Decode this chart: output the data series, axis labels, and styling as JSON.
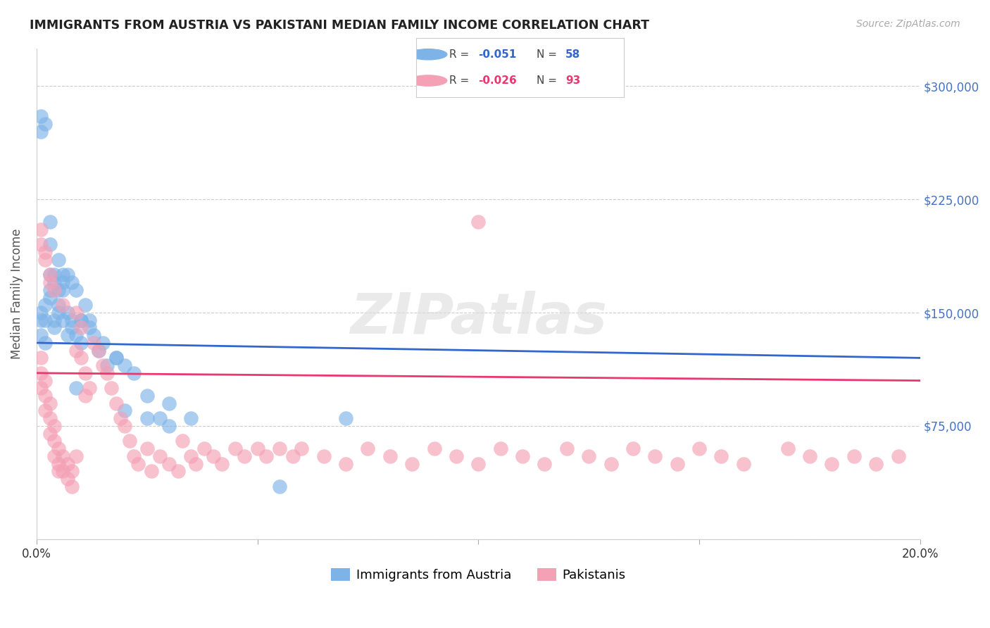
{
  "title": "IMMIGRANTS FROM AUSTRIA VS PAKISTANI MEDIAN FAMILY INCOME CORRELATION CHART",
  "source": "Source: ZipAtlas.com",
  "ylabel": "Median Family Income",
  "xlim": [
    0.0,
    0.2
  ],
  "ylim": [
    0,
    325000
  ],
  "yticks": [
    0,
    75000,
    150000,
    225000,
    300000
  ],
  "ytick_labels": [
    "",
    "$75,000",
    "$150,000",
    "$225,000",
    "$300,000"
  ],
  "xticks": [
    0.0,
    0.05,
    0.1,
    0.15,
    0.2
  ],
  "xtick_labels": [
    "0.0%",
    "",
    "",
    "",
    "20.0%"
  ],
  "austria_color": "#7EB3E8",
  "pakistan_color": "#F4A0B5",
  "trendline_austria_color": "#3366CC",
  "trendline_pakistan_color": "#E8386D",
  "austria_x": [
    0.001,
    0.001,
    0.001,
    0.002,
    0.002,
    0.002,
    0.003,
    0.003,
    0.003,
    0.004,
    0.004,
    0.004,
    0.005,
    0.005,
    0.005,
    0.006,
    0.006,
    0.006,
    0.007,
    0.007,
    0.008,
    0.008,
    0.009,
    0.009,
    0.01,
    0.01,
    0.011,
    0.012,
    0.013,
    0.014,
    0.016,
    0.018,
    0.02,
    0.022,
    0.025,
    0.028,
    0.03,
    0.035,
    0.001,
    0.001,
    0.002,
    0.003,
    0.003,
    0.004,
    0.005,
    0.006,
    0.007,
    0.008,
    0.009,
    0.01,
    0.012,
    0.015,
    0.018,
    0.02,
    0.025,
    0.03,
    0.055,
    0.07
  ],
  "austria_y": [
    135000,
    150000,
    145000,
    130000,
    145000,
    155000,
    175000,
    165000,
    160000,
    170000,
    145000,
    140000,
    150000,
    165000,
    155000,
    170000,
    165000,
    145000,
    150000,
    135000,
    140000,
    145000,
    135000,
    100000,
    145000,
    130000,
    155000,
    145000,
    135000,
    125000,
    115000,
    120000,
    115000,
    110000,
    95000,
    80000,
    90000,
    80000,
    280000,
    270000,
    275000,
    210000,
    195000,
    175000,
    185000,
    175000,
    175000,
    170000,
    165000,
    145000,
    140000,
    130000,
    120000,
    85000,
    80000,
    75000,
    35000,
    80000
  ],
  "pakistan_x": [
    0.001,
    0.001,
    0.001,
    0.002,
    0.002,
    0.002,
    0.003,
    0.003,
    0.003,
    0.004,
    0.004,
    0.004,
    0.005,
    0.005,
    0.005,
    0.006,
    0.006,
    0.007,
    0.007,
    0.008,
    0.008,
    0.009,
    0.009,
    0.01,
    0.01,
    0.011,
    0.011,
    0.012,
    0.013,
    0.014,
    0.015,
    0.016,
    0.017,
    0.018,
    0.019,
    0.02,
    0.021,
    0.022,
    0.023,
    0.025,
    0.026,
    0.028,
    0.03,
    0.032,
    0.033,
    0.035,
    0.036,
    0.038,
    0.04,
    0.042,
    0.045,
    0.047,
    0.05,
    0.052,
    0.055,
    0.058,
    0.06,
    0.065,
    0.07,
    0.075,
    0.08,
    0.085,
    0.09,
    0.095,
    0.1,
    0.105,
    0.11,
    0.115,
    0.12,
    0.125,
    0.13,
    0.135,
    0.14,
    0.145,
    0.15,
    0.155,
    0.16,
    0.17,
    0.175,
    0.18,
    0.185,
    0.19,
    0.195,
    0.001,
    0.001,
    0.002,
    0.002,
    0.003,
    0.003,
    0.004,
    0.006,
    0.009,
    0.1
  ],
  "pakistan_y": [
    120000,
    110000,
    100000,
    105000,
    95000,
    85000,
    90000,
    80000,
    70000,
    75000,
    65000,
    55000,
    60000,
    50000,
    45000,
    55000,
    45000,
    50000,
    40000,
    45000,
    35000,
    55000,
    125000,
    140000,
    120000,
    110000,
    95000,
    100000,
    130000,
    125000,
    115000,
    110000,
    100000,
    90000,
    80000,
    75000,
    65000,
    55000,
    50000,
    60000,
    45000,
    55000,
    50000,
    45000,
    65000,
    55000,
    50000,
    60000,
    55000,
    50000,
    60000,
    55000,
    60000,
    55000,
    60000,
    55000,
    60000,
    55000,
    50000,
    60000,
    55000,
    50000,
    60000,
    55000,
    50000,
    60000,
    55000,
    50000,
    60000,
    55000,
    50000,
    60000,
    55000,
    50000,
    60000,
    55000,
    50000,
    60000,
    55000,
    50000,
    55000,
    50000,
    55000,
    195000,
    205000,
    190000,
    185000,
    175000,
    170000,
    165000,
    155000,
    150000,
    210000
  ]
}
